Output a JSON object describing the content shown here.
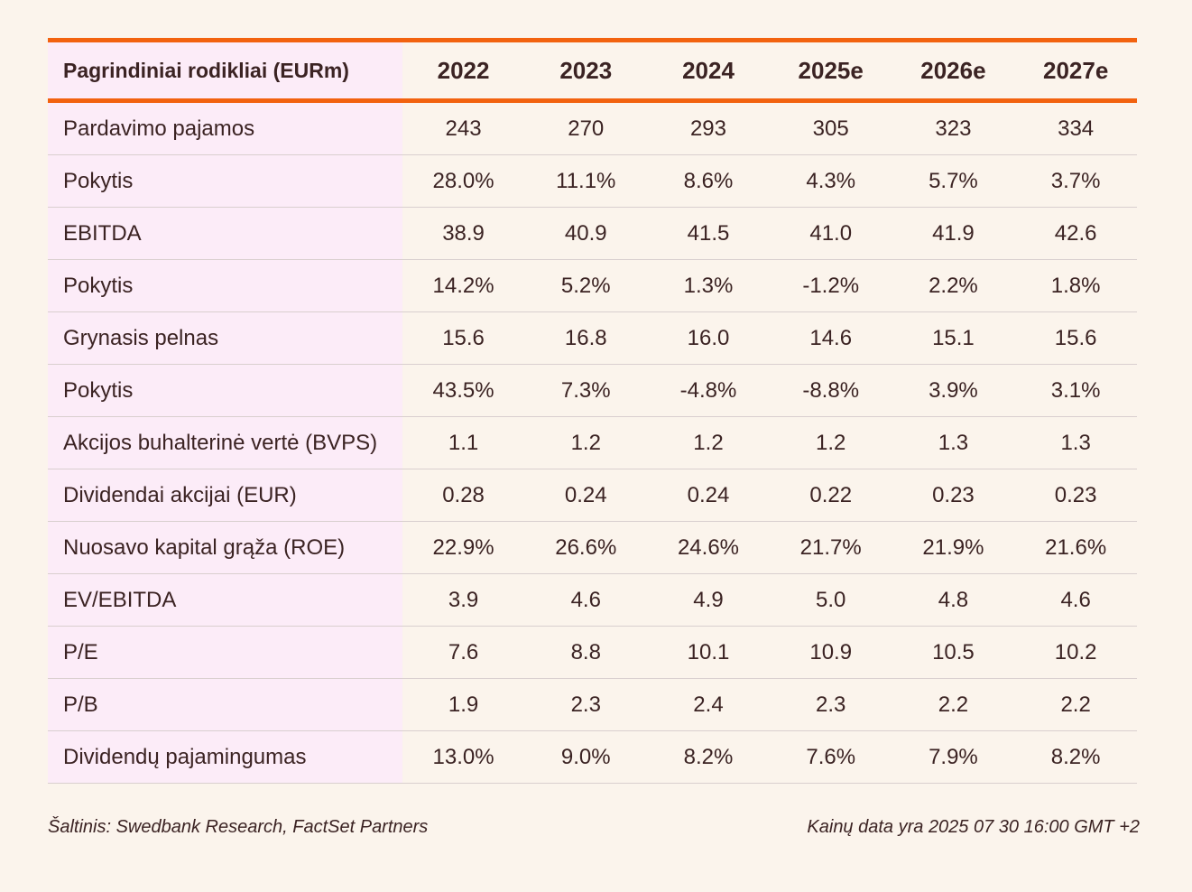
{
  "table": {
    "header_label": "Pagrindiniai rodikliai (EURm)",
    "years": [
      "2022",
      "2023",
      "2024",
      "2025e",
      "2026e",
      "2027e"
    ],
    "rows": [
      {
        "label": "Pardavimo pajamos",
        "values": [
          "243",
          "270",
          "293",
          "305",
          "323",
          "334"
        ]
      },
      {
        "label": "Pokytis",
        "values": [
          "28.0%",
          "11.1%",
          "8.6%",
          "4.3%",
          "5.7%",
          "3.7%"
        ]
      },
      {
        "label": "EBITDA",
        "values": [
          "38.9",
          "40.9",
          "41.5",
          "41.0",
          "41.9",
          "42.6"
        ]
      },
      {
        "label": "Pokytis",
        "values": [
          "14.2%",
          "5.2%",
          "1.3%",
          "-1.2%",
          "2.2%",
          "1.8%"
        ]
      },
      {
        "label": "Grynasis pelnas",
        "values": [
          "15.6",
          "16.8",
          "16.0",
          "14.6",
          "15.1",
          "15.6"
        ]
      },
      {
        "label": "Pokytis",
        "values": [
          "43.5%",
          "7.3%",
          "-4.8%",
          "-8.8%",
          "3.9%",
          "3.1%"
        ]
      },
      {
        "label": "Akcijos buhalterinė vertė (BVPS)",
        "values": [
          "1.1",
          "1.2",
          "1.2",
          "1.2",
          "1.3",
          "1.3"
        ]
      },
      {
        "label": "Dividendai akcijai (EUR)",
        "values": [
          "0.28",
          "0.24",
          "0.24",
          "0.22",
          "0.23",
          "0.23"
        ]
      },
      {
        "label": "Nuosavo kapital grąža (ROE)",
        "values": [
          "22.9%",
          "26.6%",
          "24.6%",
          "21.7%",
          "21.9%",
          "21.6%"
        ]
      },
      {
        "label": "EV/EBITDA",
        "values": [
          "3.9",
          "4.6",
          "4.9",
          "5.0",
          "4.8",
          "4.6"
        ]
      },
      {
        "label": "P/E",
        "values": [
          "7.6",
          "8.8",
          "10.1",
          "10.9",
          "10.5",
          "10.2"
        ]
      },
      {
        "label": "P/B",
        "values": [
          "1.9",
          "2.3",
          "2.4",
          "2.3",
          "2.2",
          "2.2"
        ]
      },
      {
        "label": "Dividendų pajamingumas",
        "values": [
          "13.0%",
          "9.0%",
          "8.2%",
          "7.6%",
          "7.9%",
          "8.2%"
        ]
      }
    ]
  },
  "footer": {
    "source": "Šaltinis: Swedbank Research, FactSet Partners",
    "price_date": "Kainų data yra 2025 07 30 16:00 GMT +2"
  },
  "colors": {
    "accent": "#f2620f",
    "label_bg": "#fcecf8",
    "page_bg": "#fbf4ec",
    "text": "#3b2323"
  }
}
